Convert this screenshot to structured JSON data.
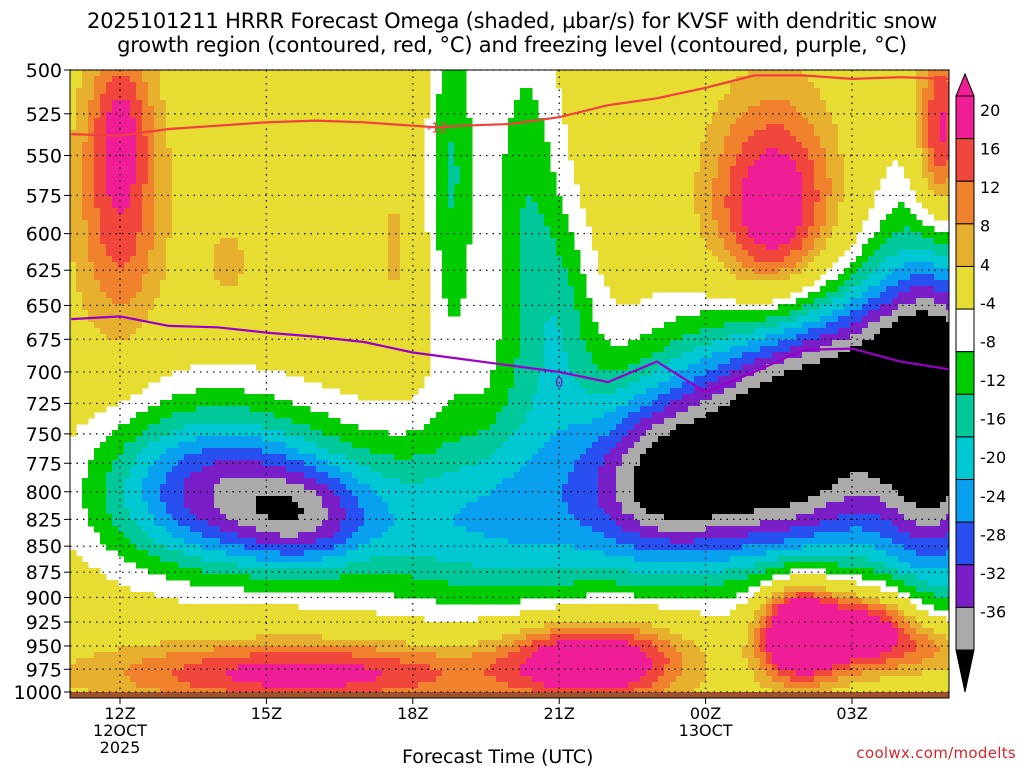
{
  "title_line1": "2025101211 HRRR Forecast Omega (shaded, µbar/s) for KVSF with dendritic snow",
  "title_line2": "growth region (contoured, red, °C) and freezing level (contoured, purple, °C)",
  "credit": "coolwx.com/modelts",
  "colors": {
    "white": "#ffffff",
    "green": "#00cc00",
    "teal": "#00c89a",
    "cyan": "#00c8d2",
    "lightblue": "#0aa0f0",
    "blue": "#2850f0",
    "purple": "#7a1ec8",
    "violet": "#a000d2",
    "gray": "#aaaaaa",
    "black": "#000000",
    "yellow": "#e6dc32",
    "gold": "#e6af2d",
    "orange": "#f0822d",
    "red": "#f0463c",
    "magenta": "#f01e96",
    "dgz_line": "#f04040",
    "freezing_line": "#9a00c8",
    "ground": "#a0522d"
  },
  "chart_data": {
    "type": "heatmap",
    "title": "2025101211 HRRR Forecast Omega (shaded, µbar/s) for KVSF with dendritic snow growth region (contoured, red, °C) and freezing level (contoured, purple, °C)",
    "xlabel": "Forecast Time (UTC)",
    "ylabel": "",
    "x_ticks": [
      {
        "label": "12Z",
        "sub": [
          "12OCT",
          "2025"
        ],
        "hour": 1
      },
      {
        "label": "15Z",
        "sub": [],
        "hour": 4
      },
      {
        "label": "18Z",
        "sub": [],
        "hour": 7
      },
      {
        "label": "21Z",
        "sub": [],
        "hour": 10
      },
      {
        "label": "00Z",
        "sub": [
          "13OCT"
        ],
        "hour": 13
      },
      {
        "label": "03Z",
        "sub": [],
        "hour": 16
      }
    ],
    "xlim_hours": [
      0,
      18
    ],
    "y_ticks": [
      500,
      525,
      550,
      575,
      600,
      625,
      650,
      675,
      700,
      725,
      750,
      775,
      800,
      825,
      850,
      875,
      900,
      925,
      950,
      975,
      1000
    ],
    "ylim": [
      1000,
      500
    ],
    "y_scale": "log-pressure",
    "grid": "dotted",
    "colorbar": {
      "labels": [
        "20",
        "16",
        "12",
        "8",
        "4",
        "-4",
        "-8",
        "-12",
        "-16",
        "-20",
        "-24",
        "-28",
        "-32",
        "-36"
      ],
      "bins": [
        {
          "lo": 20,
          "hi": null,
          "color": "magenta"
        },
        {
          "lo": 16,
          "hi": 20,
          "color": "magenta"
        },
        {
          "lo": 12,
          "hi": 16,
          "color": "red"
        },
        {
          "lo": 8,
          "hi": 12,
          "color": "orange"
        },
        {
          "lo": 4,
          "hi": 8,
          "color": "gold"
        },
        {
          "lo": -4,
          "hi": 4,
          "color": "yellow"
        },
        {
          "lo": -8,
          "hi": -4,
          "color": "white"
        },
        {
          "lo": -12,
          "hi": -8,
          "color": "green"
        },
        {
          "lo": -16,
          "hi": -12,
          "color": "teal"
        },
        {
          "lo": -20,
          "hi": -16,
          "color": "cyan"
        },
        {
          "lo": -24,
          "hi": -20,
          "color": "lightblue"
        },
        {
          "lo": -28,
          "hi": -24,
          "color": "blue"
        },
        {
          "lo": -32,
          "hi": -28,
          "color": "purple"
        },
        {
          "lo": -36,
          "hi": -32,
          "color": "gray"
        },
        {
          "lo": null,
          "hi": -36,
          "color": "black"
        }
      ]
    },
    "contour_dgz_minus12": {
      "label": "-12",
      "points": [
        [
          0,
          537
        ],
        [
          1,
          538
        ],
        [
          2,
          534
        ],
        [
          3,
          532
        ],
        [
          4,
          530
        ],
        [
          5,
          529
        ],
        [
          6,
          530
        ],
        [
          7,
          532
        ],
        [
          7.5,
          533
        ],
        [
          8,
          532
        ],
        [
          9,
          531
        ],
        [
          10,
          527
        ],
        [
          11,
          520
        ],
        [
          12,
          516
        ],
        [
          13,
          510
        ],
        [
          14,
          503
        ],
        [
          15,
          503
        ],
        [
          16,
          505
        ],
        [
          17,
          504
        ],
        [
          18,
          505
        ]
      ]
    },
    "contour_freezing_0": {
      "label": "0",
      "points": [
        [
          0,
          660
        ],
        [
          1,
          658
        ],
        [
          2,
          665
        ],
        [
          3,
          666
        ],
        [
          4,
          670
        ],
        [
          5,
          673
        ],
        [
          6,
          677
        ],
        [
          7,
          685
        ],
        [
          8,
          690
        ],
        [
          9,
          695
        ],
        [
          10,
          700
        ],
        [
          11,
          708
        ],
        [
          12,
          692
        ],
        [
          13,
          716
        ],
        [
          14,
          700
        ],
        [
          15,
          683
        ],
        [
          16,
          682
        ],
        [
          17,
          692
        ],
        [
          18,
          698
        ]
      ]
    }
  }
}
